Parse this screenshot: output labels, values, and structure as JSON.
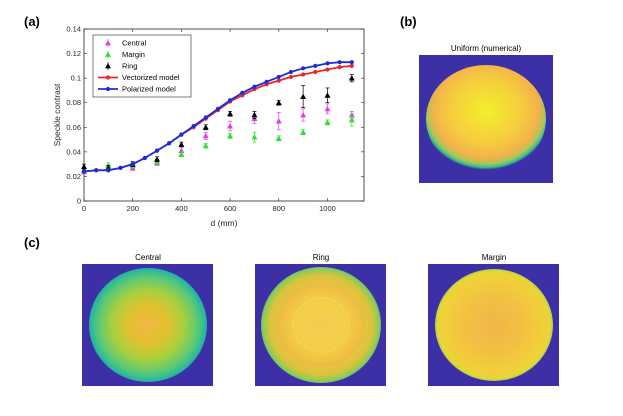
{
  "panels": {
    "a_label": "(a)",
    "b_label": "(b)",
    "c_label": "(c)"
  },
  "chart_data": {
    "type": "line",
    "xlabel": "d (mm)",
    "ylabel": "Speckle contrast",
    "xlim": [
      0,
      1150
    ],
    "ylim": [
      0,
      0.14
    ],
    "xticks": [
      0,
      200,
      400,
      600,
      800,
      1000
    ],
    "yticks": [
      0,
      0.02,
      0.04,
      0.06,
      0.08,
      0.1,
      0.12,
      0.14
    ],
    "ytick_labels": [
      "0",
      "0.02",
      "0.04",
      "0.06",
      "0.08",
      "0.1",
      "0.12",
      "0.14"
    ],
    "legend_position": "top-left",
    "series": [
      {
        "name": "Central",
        "style": "errorbar",
        "marker": "triangle",
        "color": "#e040e0",
        "x": [
          0,
          100,
          200,
          300,
          400,
          500,
          600,
          700,
          800,
          900,
          1000,
          1100
        ],
        "y": [
          0.024,
          0.027,
          0.027,
          0.031,
          0.041,
          0.053,
          0.061,
          0.067,
          0.065,
          0.07,
          0.075,
          0.07
        ],
        "err": [
          0.002,
          0.002,
          0.002,
          0.002,
          0.003,
          0.003,
          0.004,
          0.004,
          0.007,
          0.005,
          0.004,
          0.003
        ]
      },
      {
        "name": "Margin",
        "style": "errorbar",
        "marker": "triangle",
        "color": "#2fe02f",
        "x": [
          0,
          100,
          200,
          300,
          400,
          500,
          600,
          700,
          800,
          900,
          1000,
          1100
        ],
        "y": [
          0.025,
          0.029,
          0.029,
          0.032,
          0.038,
          0.045,
          0.053,
          0.052,
          0.051,
          0.056,
          0.064,
          0.066
        ],
        "err": [
          0.002,
          0.002,
          0.002,
          0.002,
          0.002,
          0.002,
          0.002,
          0.004,
          0.002,
          0.002,
          0.002,
          0.005
        ]
      },
      {
        "name": "Ring",
        "style": "errorbar",
        "marker": "triangle",
        "color": "#000000",
        "x": [
          0,
          100,
          200,
          300,
          400,
          500,
          600,
          700,
          800,
          900,
          1000,
          1100
        ],
        "y": [
          0.028,
          0.027,
          0.03,
          0.034,
          0.046,
          0.06,
          0.071,
          0.07,
          0.08,
          0.085,
          0.086,
          0.1
        ],
        "err": [
          0.002,
          0.002,
          0.002,
          0.002,
          0.002,
          0.002,
          0.002,
          0.003,
          0.002,
          0.009,
          0.006,
          0.003
        ]
      },
      {
        "name": "Vectorized model",
        "style": "line-marker",
        "marker": "circle",
        "color": "#e8282a",
        "x": [
          0,
          50,
          100,
          150,
          200,
          250,
          300,
          350,
          400,
          450,
          500,
          550,
          600,
          650,
          700,
          750,
          800,
          850,
          900,
          950,
          1000,
          1050,
          1100
        ],
        "y": [
          0.024,
          0.025,
          0.025,
          0.027,
          0.03,
          0.035,
          0.041,
          0.047,
          0.054,
          0.06,
          0.067,
          0.074,
          0.081,
          0.086,
          0.091,
          0.095,
          0.098,
          0.101,
          0.103,
          0.105,
          0.107,
          0.109,
          0.11
        ]
      },
      {
        "name": "Polarized model",
        "style": "line-marker",
        "marker": "circle",
        "color": "#1a2ed8",
        "x": [
          0,
          50,
          100,
          150,
          200,
          250,
          300,
          350,
          400,
          450,
          500,
          550,
          600,
          650,
          700,
          750,
          800,
          850,
          900,
          950,
          1000,
          1050,
          1100
        ],
        "y": [
          0.024,
          0.025,
          0.025,
          0.027,
          0.03,
          0.035,
          0.041,
          0.047,
          0.054,
          0.061,
          0.068,
          0.075,
          0.082,
          0.088,
          0.093,
          0.097,
          0.101,
          0.105,
          0.108,
          0.11,
          0.112,
          0.113,
          0.113
        ]
      }
    ]
  },
  "images": {
    "b_title": "Uniform (numerical)",
    "c_titles": [
      "Central",
      "Ring",
      "Margin"
    ]
  },
  "colors": {
    "background_blue": "#3d30a6",
    "disc_yellow": "#f4e33a",
    "disc_orange": "#f7b94a",
    "disc_green": "#2fc48e"
  }
}
